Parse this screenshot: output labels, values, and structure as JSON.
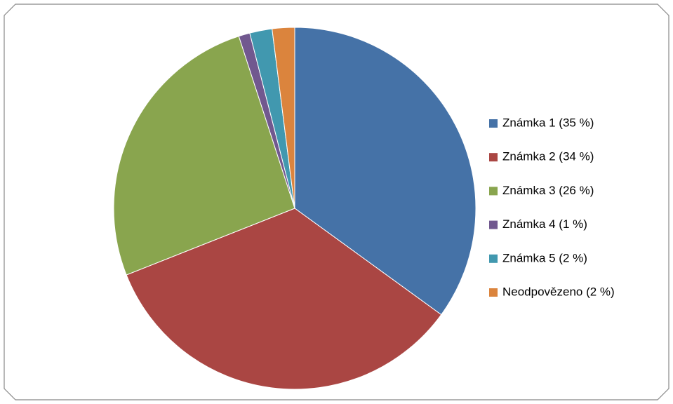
{
  "chart_data": {
    "type": "pie",
    "categories": [
      "Známka 1 (35 %)",
      "Známka 2 (34 %)",
      "Známka 3 (26 %)",
      "Známka 4 (1 %)",
      "Známka 5 (2 %)",
      "Neodpovězeno (2 %)"
    ],
    "values": [
      35,
      34,
      26,
      1,
      2,
      2
    ],
    "colors": [
      "#4572A7",
      "#AA4643",
      "#89A54E",
      "#71588F",
      "#4198AF",
      "#DB843D"
    ],
    "legend": "right"
  }
}
